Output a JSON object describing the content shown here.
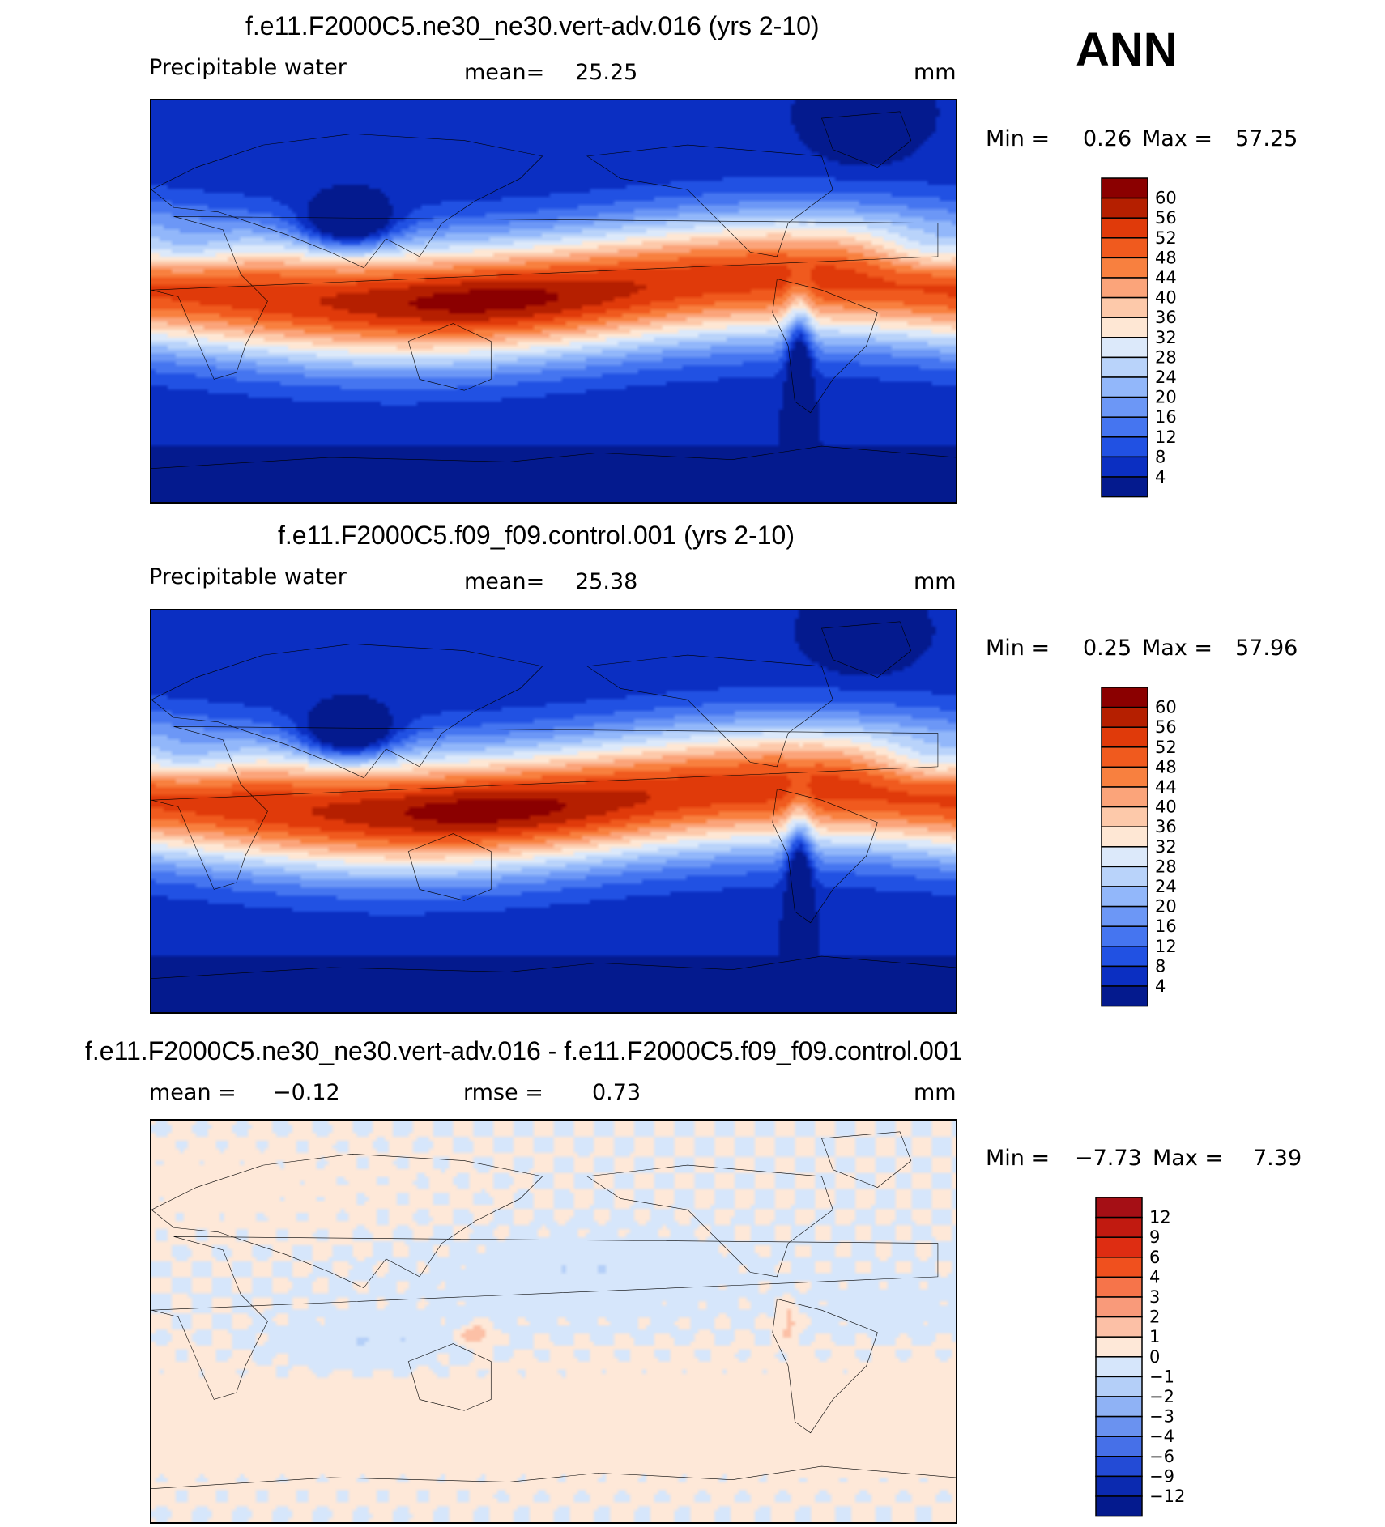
{
  "season": "ANN",
  "panels": [
    {
      "title": "f.e11.F2000C5.ne30_ne30.vert-adv.016 (yrs 2-10)",
      "variable": "Precipitable water",
      "mean_label": "mean=",
      "mean_value": "25.25",
      "units": "mm",
      "min_label": "Min =",
      "min_value": "0.26",
      "max_label": "Max =",
      "max_value": "57.25",
      "colorbar_labels": [
        "60",
        "56",
        "52",
        "48",
        "44",
        "40",
        "36",
        "32",
        "28",
        "24",
        "20",
        "16",
        "12",
        "8",
        "4"
      ],
      "colorbar_colors": [
        "#8b0000",
        "#b51f00",
        "#e03a0a",
        "#f05a1e",
        "#f8803f",
        "#fba47a",
        "#fdc9aa",
        "#fee7d4",
        "#dce9fa",
        "#b9d3fa",
        "#92b7fa",
        "#6c97f6",
        "#4575f0",
        "#2151e3",
        "#0b2fc2",
        "#041a8e"
      ],
      "field": "pw"
    },
    {
      "title": "f.e11.F2000C5.f09_f09.control.001 (yrs 2-10)",
      "variable": "Precipitable water",
      "mean_label": "mean=",
      "mean_value": "25.38",
      "units": "mm",
      "min_label": "Min =",
      "min_value": "0.25",
      "max_label": "Max =",
      "max_value": "57.96",
      "colorbar_labels": [
        "60",
        "56",
        "52",
        "48",
        "44",
        "40",
        "36",
        "32",
        "28",
        "24",
        "20",
        "16",
        "12",
        "8",
        "4"
      ],
      "colorbar_colors": [
        "#8b0000",
        "#b51f00",
        "#e03a0a",
        "#f05a1e",
        "#f8803f",
        "#fba47a",
        "#fdc9aa",
        "#fee7d4",
        "#dce9fa",
        "#b9d3fa",
        "#92b7fa",
        "#6c97f6",
        "#4575f0",
        "#2151e3",
        "#0b2fc2",
        "#041a8e"
      ],
      "field": "pw"
    },
    {
      "title": "f.e11.F2000C5.ne30_ne30.vert-adv.016 - f.e11.F2000C5.f09_f09.control.001",
      "mean_label": "mean =",
      "mean_value": "−0.12",
      "rmse_label": "rmse =",
      "rmse_value": "0.73",
      "units": "mm",
      "min_label": "Min =",
      "min_value": "−7.73",
      "max_label": "Max =",
      "max_value": "7.39",
      "colorbar_labels": [
        "12",
        "9",
        "6",
        "4",
        "3",
        "2",
        "1",
        "0",
        "−1",
        "−2",
        "−3",
        "−4",
        "−6",
        "−9",
        "−12"
      ],
      "colorbar_colors": [
        "#a50f15",
        "#c11a10",
        "#de2d12",
        "#f0501e",
        "#f6744a",
        "#f99a7a",
        "#fcc0a6",
        "#fee8d8",
        "#d6e6fb",
        "#b4cff8",
        "#8fb2f5",
        "#6a92f0",
        "#4670e8",
        "#234bd6",
        "#0b2ab0",
        "#041a8e"
      ],
      "field": "diff"
    }
  ]
}
